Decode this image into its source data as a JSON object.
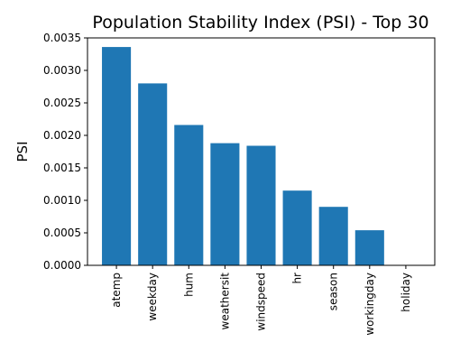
{
  "chart_data": {
    "type": "bar",
    "title": "Population Stability Index (PSI) - Top 30",
    "xlabel": "",
    "ylabel": "PSI",
    "categories": [
      "atemp",
      "weekday",
      "hum",
      "weathersit",
      "windspeed",
      "hr",
      "season",
      "workingday",
      "holiday"
    ],
    "values": [
      0.00336,
      0.0028,
      0.00216,
      0.00188,
      0.00184,
      0.00115,
      0.0009,
      0.00054,
      0.0
    ],
    "ylim": [
      0,
      0.0035
    ],
    "yticks": [
      0.0,
      0.0005,
      0.001,
      0.0015,
      0.002,
      0.0025,
      0.003,
      0.0035
    ],
    "ytick_labels": [
      "0.0000",
      "0.0005",
      "0.0010",
      "0.0015",
      "0.0020",
      "0.0025",
      "0.0030",
      "0.0035"
    ],
    "xtick_rotation": "vertical",
    "bar_color": "#1f77b4",
    "grid": false,
    "legend": "none"
  }
}
